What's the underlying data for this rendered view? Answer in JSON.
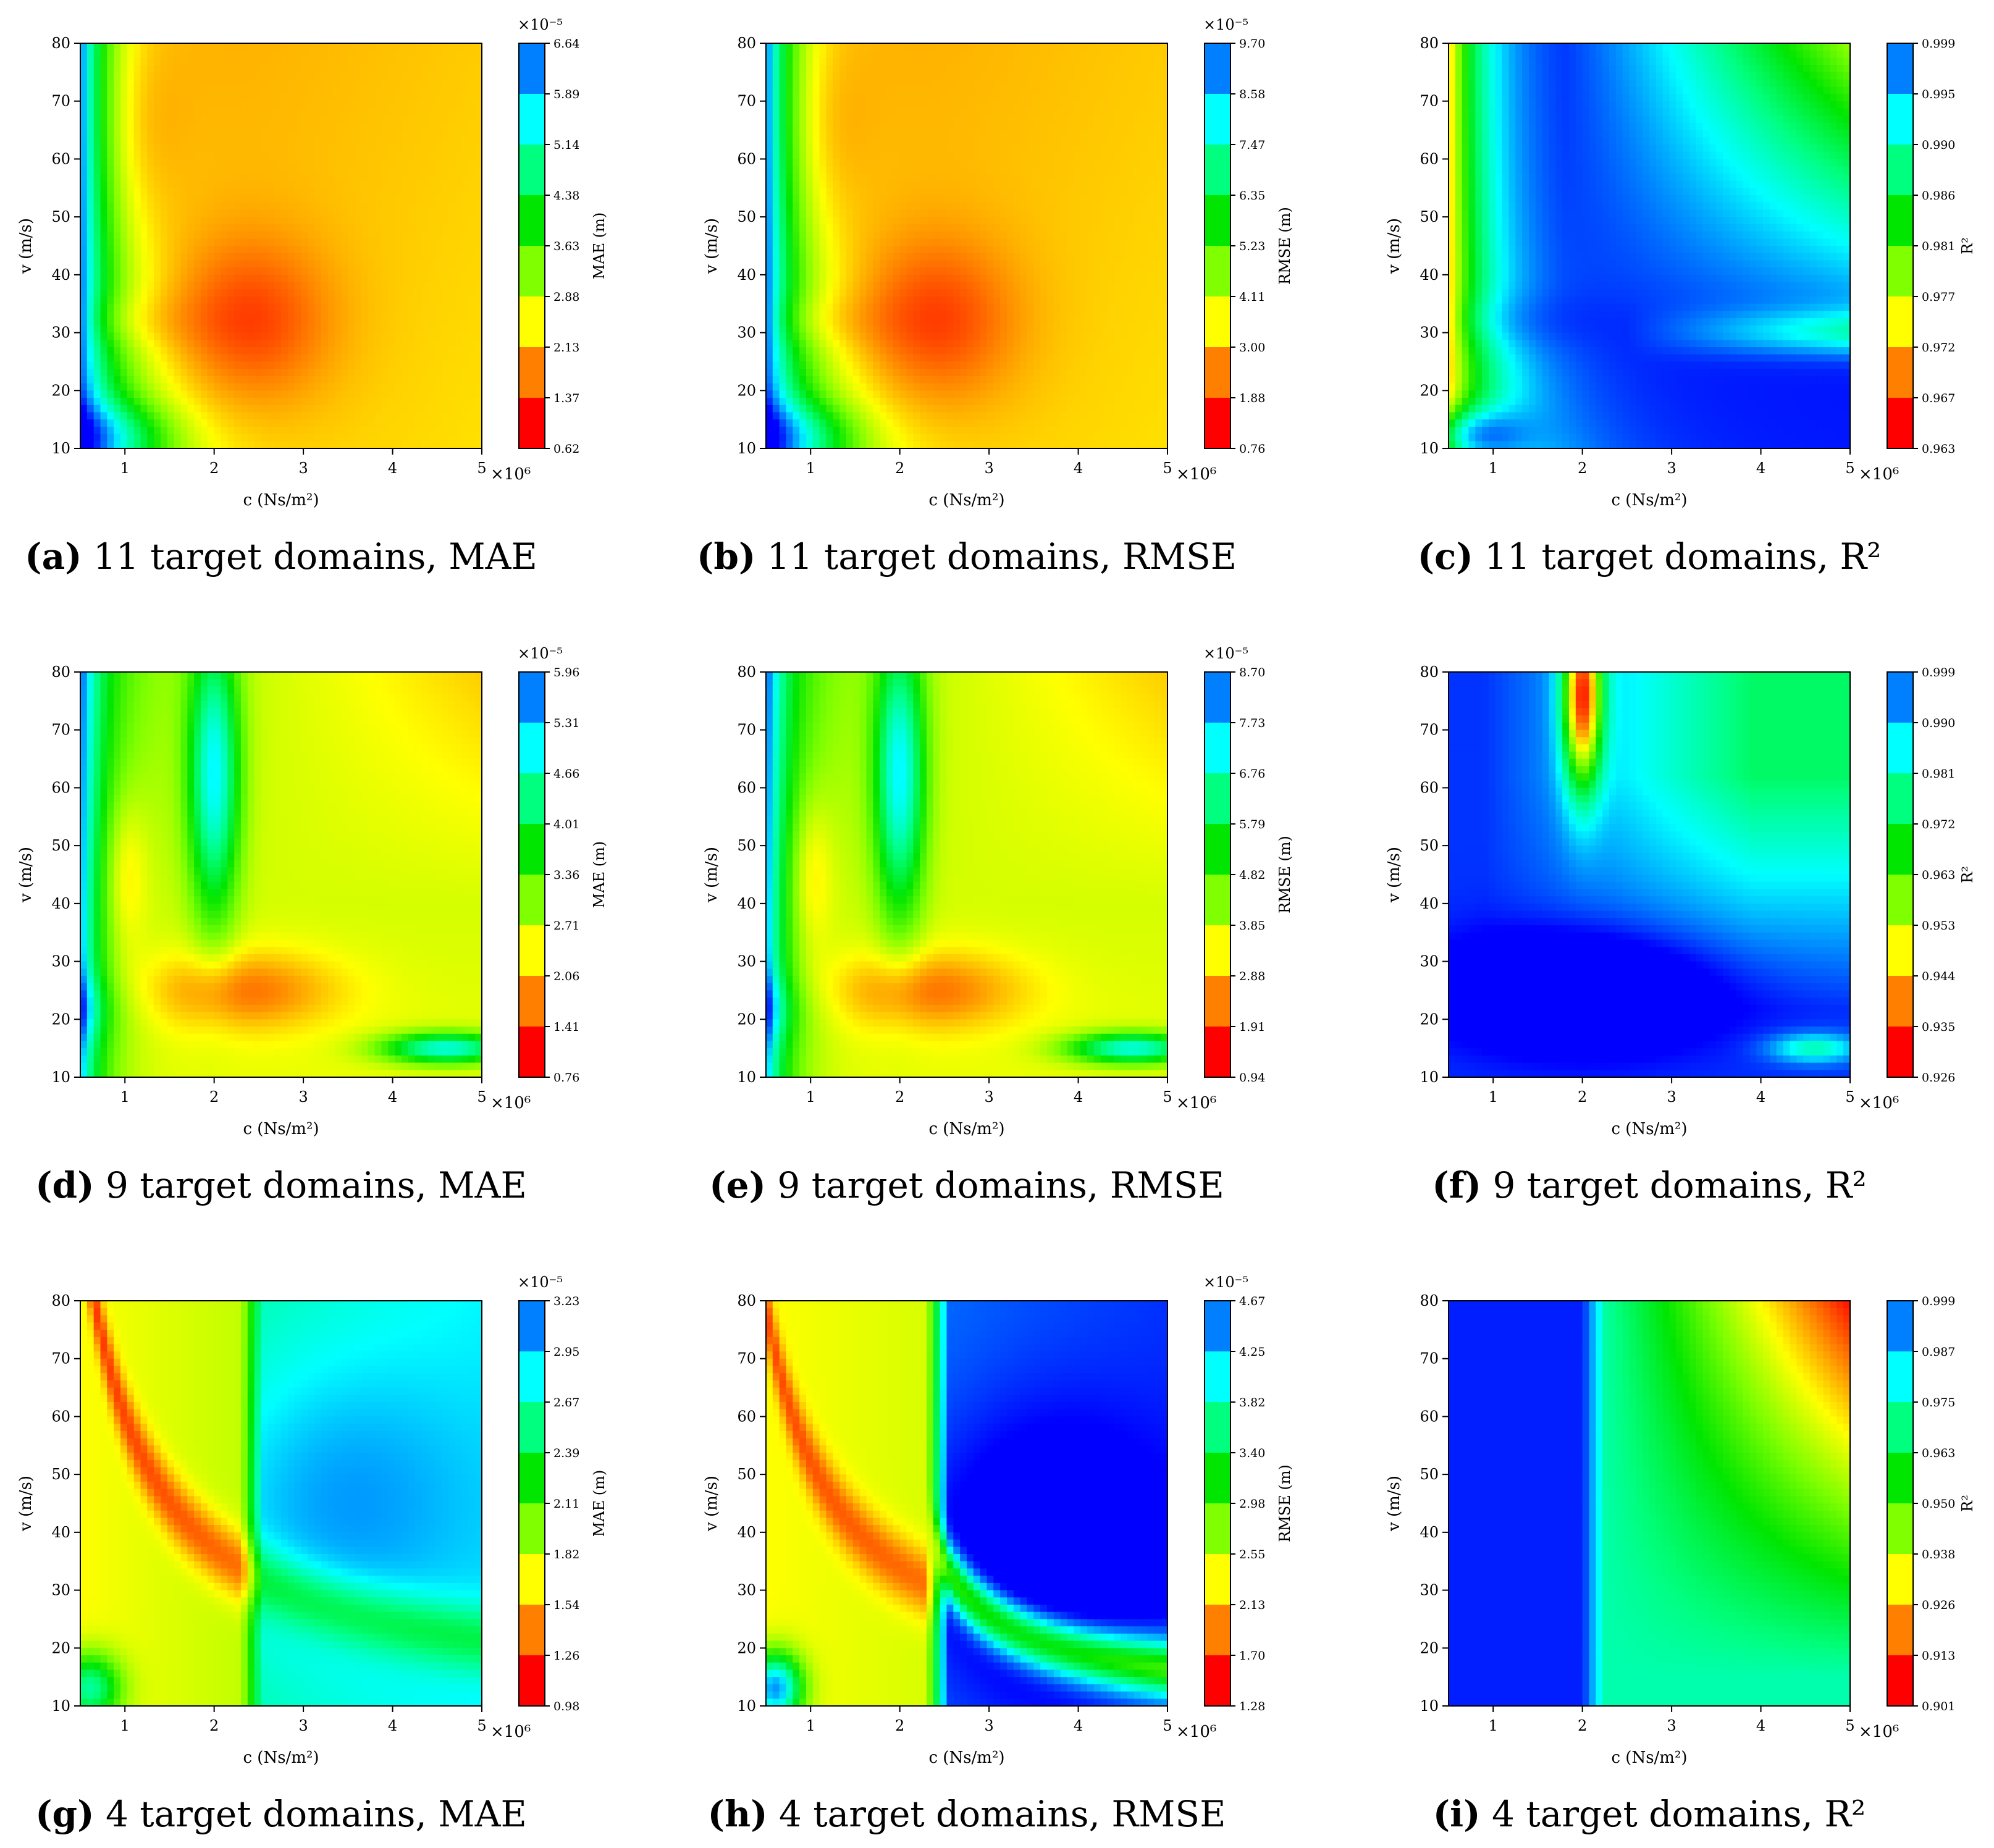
{
  "figure": {
    "x_axis_label": "c (Ns/m²)",
    "y_axis_label": "v (m/s)",
    "x_ticks": [
      "1",
      "2",
      "3",
      "4",
      "5"
    ],
    "y_ticks": [
      "10",
      "20",
      "30",
      "40",
      "50",
      "60",
      "70",
      "80"
    ],
    "x_multiplier": "×10⁶",
    "cbar_multiplier": "×10⁻⁵",
    "band_colors": [
      "#ff0000",
      "#ff7f00",
      "#ffff00",
      "#7fff00",
      "#00e600",
      "#00ff7f",
      "#00ffff",
      "#007fff"
    ]
  },
  "chart_data": [
    {
      "id": "a",
      "type": "heatmap",
      "caption_letter": "(a)",
      "caption_text": "11 target domains, MAE",
      "metric": "MAE",
      "cbar_label": "MAE (m)",
      "cbar_exponent": "×10⁻⁵",
      "cbar_ticks": [
        "0.62",
        "1.37",
        "2.13",
        "2.88",
        "3.63",
        "4.38",
        "5.14",
        "5.89",
        "6.64"
      ],
      "pattern": "err11",
      "xlim": [
        0.5,
        5
      ],
      "ylim": [
        10,
        80
      ],
      "x_scale": "×10⁶"
    },
    {
      "id": "b",
      "type": "heatmap",
      "caption_letter": "(b)",
      "caption_text": "11 target domains, RMSE",
      "metric": "RMSE",
      "cbar_label": "RMSE (m)",
      "cbar_exponent": "×10⁻⁵",
      "cbar_ticks": [
        "0.76",
        "1.88",
        "3.00",
        "4.11",
        "5.23",
        "6.35",
        "7.47",
        "8.58",
        "9.70"
      ],
      "pattern": "err11",
      "xlim": [
        0.5,
        5
      ],
      "ylim": [
        10,
        80
      ],
      "x_scale": "×10⁶"
    },
    {
      "id": "c",
      "type": "heatmap",
      "caption_letter": "(c)",
      "caption_text": "11 target domains, R²",
      "metric": "R²",
      "cbar_label": "R²",
      "cbar_exponent": "",
      "cbar_ticks": [
        "0.963",
        "0.967",
        "0.972",
        "0.977",
        "0.981",
        "0.986",
        "0.990",
        "0.995",
        "0.999"
      ],
      "pattern": "r2_11",
      "xlim": [
        0.5,
        5
      ],
      "ylim": [
        10,
        80
      ],
      "x_scale": "×10⁶"
    },
    {
      "id": "d",
      "type": "heatmap",
      "caption_letter": "(d)",
      "caption_text": "9 target domains, MAE",
      "metric": "MAE",
      "cbar_label": "MAE (m)",
      "cbar_exponent": "×10⁻⁵",
      "cbar_ticks": [
        "0.76",
        "1.41",
        "2.06",
        "2.71",
        "3.36",
        "4.01",
        "4.66",
        "5.31",
        "5.96"
      ],
      "pattern": "err9",
      "xlim": [
        0.5,
        5
      ],
      "ylim": [
        10,
        80
      ],
      "x_scale": "×10⁶"
    },
    {
      "id": "e",
      "type": "heatmap",
      "caption_letter": "(e)",
      "caption_text": "9 target domains, RMSE",
      "metric": "RMSE",
      "cbar_label": "RMSE (m)",
      "cbar_exponent": "×10⁻⁵",
      "cbar_ticks": [
        "0.94",
        "1.91",
        "2.88",
        "3.85",
        "4.82",
        "5.79",
        "6.76",
        "7.73",
        "8.70"
      ],
      "pattern": "err9",
      "xlim": [
        0.5,
        5
      ],
      "ylim": [
        10,
        80
      ],
      "x_scale": "×10⁶"
    },
    {
      "id": "f",
      "type": "heatmap",
      "caption_letter": "(f)",
      "caption_text": "9 target domains, R²",
      "metric": "R²",
      "cbar_label": "R²",
      "cbar_exponent": "",
      "cbar_ticks": [
        "0.926",
        "0.935",
        "0.944",
        "0.953",
        "0.963",
        "0.972",
        "0.981",
        "0.990",
        "0.999"
      ],
      "pattern": "r2_9",
      "xlim": [
        0.5,
        5
      ],
      "ylim": [
        10,
        80
      ],
      "x_scale": "×10⁶"
    },
    {
      "id": "g",
      "type": "heatmap",
      "caption_letter": "(g)",
      "caption_text": "4 target domains, MAE",
      "metric": "MAE",
      "cbar_label": "MAE (m)",
      "cbar_exponent": "×10⁻⁵",
      "cbar_ticks": [
        "0.98",
        "1.26",
        "1.54",
        "1.82",
        "2.11",
        "2.39",
        "2.67",
        "2.95",
        "3.23"
      ],
      "pattern": "mae4",
      "xlim": [
        0.5,
        5
      ],
      "ylim": [
        10,
        80
      ],
      "x_scale": "×10⁶"
    },
    {
      "id": "h",
      "type": "heatmap",
      "caption_letter": "(h)",
      "caption_text": "4 target domains, RMSE",
      "metric": "RMSE",
      "cbar_label": "RMSE (m)",
      "cbar_exponent": "×10⁻⁵",
      "cbar_ticks": [
        "1.28",
        "1.70",
        "2.13",
        "2.55",
        "2.98",
        "3.40",
        "3.82",
        "4.25",
        "4.67"
      ],
      "pattern": "rmse4",
      "xlim": [
        0.5,
        5
      ],
      "ylim": [
        10,
        80
      ],
      "x_scale": "×10⁶"
    },
    {
      "id": "i",
      "type": "heatmap",
      "caption_letter": "(i)",
      "caption_text": "4 target domains, R²",
      "metric": "R²",
      "cbar_label": "R²",
      "cbar_exponent": "",
      "cbar_ticks": [
        "0.901",
        "0.913",
        "0.926",
        "0.938",
        "0.950",
        "0.963",
        "0.975",
        "0.987",
        "0.999"
      ],
      "pattern": "r2_4",
      "xlim": [
        0.5,
        5
      ],
      "ylim": [
        10,
        80
      ],
      "x_scale": "×10⁶"
    }
  ]
}
